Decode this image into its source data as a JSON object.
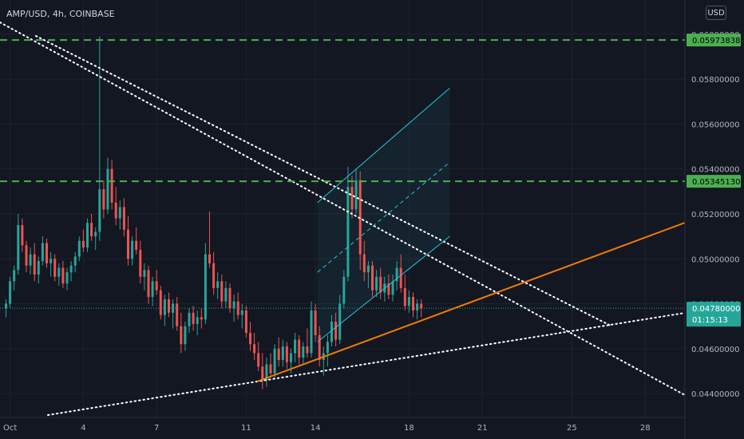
{
  "header": {
    "symbol_title": "AMP/USD, 4h, COINBASE",
    "currency_label": "USD"
  },
  "colors": {
    "background": "#131722",
    "up": "#26a69a",
    "down": "#ef5350",
    "level": "#4caf50",
    "channel": "#26c6da",
    "trend_orange": "#f57c00",
    "trend_dotted": "#ffffff",
    "current_price": "#26a69a"
  },
  "chart_data": {
    "type": "candlestick",
    "ylim": [
      0.0434,
      0.0601
    ],
    "y_ticks": [
      "0.06000000",
      "0.05800000",
      "0.05600000",
      "0.05400000",
      "0.05200000",
      "0.05000000",
      "0.04800000",
      "0.04600000",
      "0.04400000"
    ],
    "y_tick_values": [
      0.06,
      0.058,
      0.056,
      0.054,
      0.052,
      0.05,
      0.048,
      0.046,
      0.044
    ],
    "x_ticks": [
      {
        "label": "Oct",
        "bar": 1
      },
      {
        "label": "4",
        "bar": 19
      },
      {
        "label": "7",
        "bar": 37
      },
      {
        "label": "11",
        "bar": 59
      },
      {
        "label": "14",
        "bar": 76
      },
      {
        "label": "18",
        "bar": 99
      },
      {
        "label": "21",
        "bar": 117
      },
      {
        "label": "25",
        "bar": 139
      },
      {
        "label": "28",
        "bar": 157
      }
    ],
    "horizontal_levels": [
      {
        "value": 0.05973838,
        "label": "0.05973838"
      },
      {
        "value": 0.0534513,
        "label": "0.05345130"
      }
    ],
    "current_price": {
      "value": 0.0478,
      "label": "0.04780000",
      "countdown": "01:15:13"
    },
    "candles": [
      [
        0.0478,
        0.0482,
        0.0474,
        0.048
      ],
      [
        0.048,
        0.0492,
        0.0478,
        0.049
      ],
      [
        0.049,
        0.0497,
        0.0486,
        0.0495
      ],
      [
        0.0495,
        0.052,
        0.0493,
        0.0515
      ],
      [
        0.0515,
        0.0518,
        0.0503,
        0.0506
      ],
      [
        0.0506,
        0.0508,
        0.0494,
        0.0497
      ],
      [
        0.0497,
        0.0505,
        0.0493,
        0.0502
      ],
      [
        0.0502,
        0.0507,
        0.049,
        0.0493
      ],
      [
        0.0493,
        0.0501,
        0.0489,
        0.0499
      ],
      [
        0.0499,
        0.051,
        0.0497,
        0.0507
      ],
      [
        0.0507,
        0.0509,
        0.0496,
        0.0498
      ],
      [
        0.0498,
        0.0503,
        0.0492,
        0.05
      ],
      [
        0.05,
        0.0502,
        0.049,
        0.0492
      ],
      [
        0.0492,
        0.0498,
        0.0488,
        0.0496
      ],
      [
        0.0496,
        0.0499,
        0.0487,
        0.0489
      ],
      [
        0.0489,
        0.0496,
        0.0486,
        0.0494
      ],
      [
        0.0494,
        0.0499,
        0.049,
        0.0497
      ],
      [
        0.0497,
        0.0503,
        0.0494,
        0.0501
      ],
      [
        0.0501,
        0.051,
        0.0499,
        0.0508
      ],
      [
        0.0508,
        0.0513,
        0.0503,
        0.0505
      ],
      [
        0.0505,
        0.0518,
        0.0503,
        0.0516
      ],
      [
        0.0516,
        0.052,
        0.0508,
        0.051
      ],
      [
        0.051,
        0.0514,
        0.0504,
        0.0512
      ],
      [
        0.0512,
        0.0599,
        0.0508,
        0.0531
      ],
      [
        0.0531,
        0.0535,
        0.0518,
        0.0522
      ],
      [
        0.0522,
        0.0545,
        0.052,
        0.054
      ],
      [
        0.054,
        0.0544,
        0.0522,
        0.0525
      ],
      [
        0.0525,
        0.0532,
        0.0515,
        0.0518
      ],
      [
        0.0518,
        0.0526,
        0.0513,
        0.0523
      ],
      [
        0.0523,
        0.0527,
        0.051,
        0.0513
      ],
      [
        0.0513,
        0.0519,
        0.0497,
        0.05
      ],
      [
        0.05,
        0.051,
        0.0497,
        0.0508
      ],
      [
        0.0508,
        0.0514,
        0.0502,
        0.0504
      ],
      [
        0.0504,
        0.0508,
        0.0489,
        0.0492
      ],
      [
        0.0492,
        0.0498,
        0.0486,
        0.0495
      ],
      [
        0.0495,
        0.0497,
        0.048,
        0.0483
      ],
      [
        0.0483,
        0.0492,
        0.0479,
        0.049
      ],
      [
        0.049,
        0.0495,
        0.0484,
        0.0486
      ],
      [
        0.0486,
        0.0488,
        0.0473,
        0.0475
      ],
      [
        0.0475,
        0.0484,
        0.047,
        0.0482
      ],
      [
        0.0482,
        0.0485,
        0.0474,
        0.0476
      ],
      [
        0.0476,
        0.0482,
        0.0469,
        0.048
      ],
      [
        0.048,
        0.0483,
        0.0468,
        0.047
      ],
      [
        0.047,
        0.0476,
        0.0458,
        0.0462
      ],
      [
        0.0462,
        0.0472,
        0.0459,
        0.047
      ],
      [
        0.047,
        0.0478,
        0.0467,
        0.0476
      ],
      [
        0.0476,
        0.0479,
        0.0468,
        0.0471
      ],
      [
        0.0471,
        0.0477,
        0.0466,
        0.0474
      ],
      [
        0.0474,
        0.0478,
        0.0469,
        0.0473
      ],
      [
        0.0473,
        0.0507,
        0.0471,
        0.0502
      ],
      [
        0.0502,
        0.0521,
        0.0496,
        0.0498
      ],
      [
        0.0498,
        0.0503,
        0.0484,
        0.0487
      ],
      [
        0.0487,
        0.0494,
        0.0482,
        0.049
      ],
      [
        0.049,
        0.0493,
        0.0478,
        0.0481
      ],
      [
        0.0481,
        0.049,
        0.0478,
        0.0487
      ],
      [
        0.0487,
        0.0489,
        0.0476,
        0.0478
      ],
      [
        0.0478,
        0.0484,
        0.0472,
        0.0481
      ],
      [
        0.0481,
        0.0485,
        0.0473,
        0.0475
      ],
      [
        0.0475,
        0.048,
        0.0469,
        0.0477
      ],
      [
        0.0477,
        0.0479,
        0.0465,
        0.0467
      ],
      [
        0.0467,
        0.0472,
        0.0459,
        0.0462
      ],
      [
        0.0462,
        0.0467,
        0.0455,
        0.0458
      ],
      [
        0.0458,
        0.0463,
        0.045,
        0.0452
      ],
      [
        0.0452,
        0.0458,
        0.0442,
        0.0446
      ],
      [
        0.0446,
        0.0456,
        0.0443,
        0.0453
      ],
      [
        0.0453,
        0.0458,
        0.0447,
        0.0449
      ],
      [
        0.0449,
        0.0462,
        0.0447,
        0.046
      ],
      [
        0.046,
        0.0465,
        0.0452,
        0.0455
      ],
      [
        0.0455,
        0.0464,
        0.0452,
        0.0461
      ],
      [
        0.0461,
        0.0463,
        0.0451,
        0.0454
      ],
      [
        0.0454,
        0.046,
        0.0449,
        0.0458
      ],
      [
        0.0458,
        0.0467,
        0.0454,
        0.0464
      ],
      [
        0.0464,
        0.0466,
        0.0453,
        0.0456
      ],
      [
        0.0456,
        0.0463,
        0.0453,
        0.0461
      ],
      [
        0.0461,
        0.0469,
        0.0456,
        0.0458
      ],
      [
        0.0458,
        0.0481,
        0.0456,
        0.0477
      ],
      [
        0.0477,
        0.048,
        0.0463,
        0.0466
      ],
      [
        0.0466,
        0.047,
        0.0452,
        0.0455
      ],
      [
        0.0455,
        0.0461,
        0.0448,
        0.0458
      ],
      [
        0.0458,
        0.0466,
        0.0452,
        0.0463
      ],
      [
        0.0463,
        0.0475,
        0.0461,
        0.0472
      ],
      [
        0.0472,
        0.0476,
        0.0461,
        0.0464
      ],
      [
        0.0464,
        0.0484,
        0.0462,
        0.048
      ],
      [
        0.048,
        0.0495,
        0.0478,
        0.0492
      ],
      [
        0.0492,
        0.0541,
        0.049,
        0.0532
      ],
      [
        0.0532,
        0.0537,
        0.0518,
        0.0522
      ],
      [
        0.0522,
        0.054,
        0.052,
        0.0535
      ],
      [
        0.0535,
        0.0539,
        0.0495,
        0.0502
      ],
      [
        0.0502,
        0.0508,
        0.049,
        0.0494
      ],
      [
        0.0494,
        0.0499,
        0.0487,
        0.0497
      ],
      [
        0.0497,
        0.0499,
        0.0483,
        0.0486
      ],
      [
        0.0486,
        0.0495,
        0.0483,
        0.0492
      ],
      [
        0.0492,
        0.0496,
        0.0482,
        0.0485
      ],
      [
        0.0485,
        0.0492,
        0.0481,
        0.0489
      ],
      [
        0.0489,
        0.0493,
        0.0482,
        0.0484
      ],
      [
        0.0484,
        0.0493,
        0.0481,
        0.049
      ],
      [
        0.049,
        0.0499,
        0.0486,
        0.0496
      ],
      [
        0.0496,
        0.0502,
        0.0485,
        0.0487
      ],
      [
        0.0487,
        0.0493,
        0.0477,
        0.0479
      ],
      [
        0.0479,
        0.0486,
        0.0476,
        0.0483
      ],
      [
        0.0483,
        0.0485,
        0.0474,
        0.0477
      ],
      [
        0.0477,
        0.0482,
        0.0473,
        0.048
      ],
      [
        0.048,
        0.0482,
        0.0474,
        0.0478
      ]
    ]
  }
}
